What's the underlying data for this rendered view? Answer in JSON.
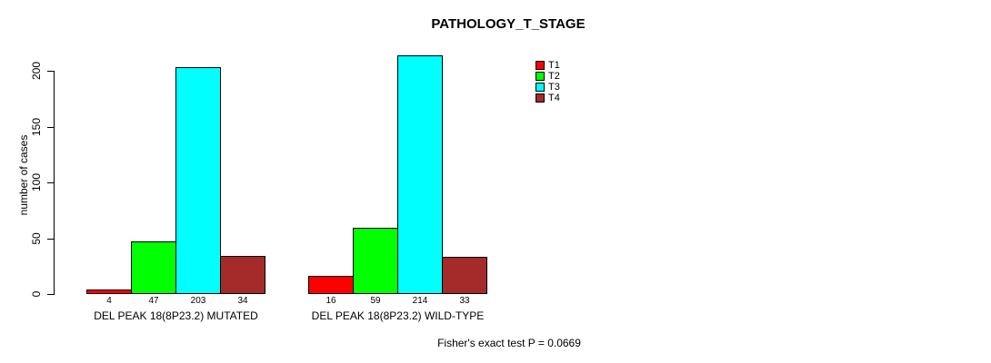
{
  "chart_data": {
    "type": "bar",
    "title": "PATHOLOGY_T_STAGE",
    "ylabel": "number of cases",
    "xlabel": "",
    "ylim": [
      0,
      215
    ],
    "yticks": [
      0,
      50,
      100,
      150,
      200
    ],
    "grid": false,
    "legend_position": "top-right-of-plot",
    "categories": [
      "DEL PEAK 18(8P23.2) MUTATED",
      "DEL PEAK 18(8P23.2) WILD-TYPE"
    ],
    "series": [
      {
        "name": "T1",
        "color": "#FF0000",
        "values": [
          4,
          16
        ]
      },
      {
        "name": "T2",
        "color": "#00FF00",
        "values": [
          47,
          59
        ]
      },
      {
        "name": "T3",
        "color": "#00FFFF",
        "values": [
          203,
          214
        ]
      },
      {
        "name": "T4",
        "color": "#A52A2A",
        "values": [
          34,
          33
        ]
      }
    ],
    "value_labels": [
      [
        "4",
        "47",
        "203",
        "34"
      ],
      [
        "16",
        "59",
        "214",
        "33"
      ]
    ],
    "bar_border_color": "#000000",
    "annotation": "Fisher's exact test P = 0.0669"
  }
}
